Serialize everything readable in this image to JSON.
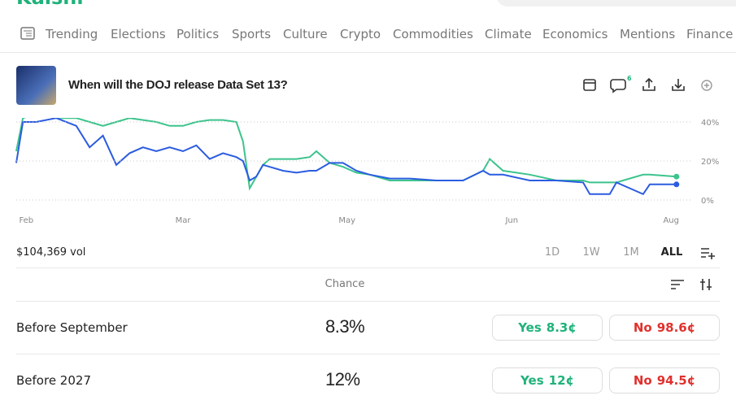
{
  "brand": "Kalshi",
  "nav": [
    "Trending",
    "Elections",
    "Politics",
    "Sports",
    "Culture",
    "Crypto",
    "Commodities",
    "Climate",
    "Economics",
    "Mentions",
    "Finance"
  ],
  "header": {
    "title": "When will the DOJ release Data Set 13?",
    "comment_count": "6"
  },
  "chart_data": {
    "type": "line",
    "x": [
      0,
      1,
      3,
      6,
      9,
      11,
      13,
      15,
      17,
      19,
      21,
      23,
      25,
      27,
      29,
      31,
      33,
      34,
      35,
      36,
      37,
      38,
      40,
      42,
      44,
      45,
      47,
      49,
      51,
      53,
      56,
      59,
      63,
      67,
      70,
      71,
      73,
      77,
      81,
      85,
      86,
      89,
      90,
      94,
      95,
      99
    ],
    "series": [
      {
        "color": "#3cc48c",
        "values": [
          25,
          42,
          44,
          42,
          42,
          40,
          38,
          40,
          42,
          41,
          40,
          38,
          38,
          40,
          41,
          41,
          40,
          30,
          6,
          12,
          18,
          21,
          21,
          21,
          22,
          25,
          19,
          17,
          14,
          13,
          10,
          10,
          10,
          10,
          15,
          21,
          15,
          13,
          10,
          10,
          9,
          9,
          9,
          13,
          13,
          12
        ]
      },
      {
        "color": "#2b5ce0",
        "values": [
          19,
          40,
          40,
          42,
          38,
          27,
          33,
          18,
          24,
          27,
          25,
          27,
          25,
          28,
          21,
          24,
          22,
          20,
          10,
          12,
          18,
          17,
          15,
          14,
          15,
          15,
          19,
          19,
          15,
          13,
          11,
          11,
          10,
          10,
          15,
          13,
          13,
          10,
          10,
          9,
          3,
          3,
          9,
          3,
          8,
          8
        ]
      }
    ],
    "xlim": [
      0,
      100
    ],
    "xticks": [
      {
        "value": 1.5,
        "label": "Feb"
      },
      {
        "value": 25,
        "label": "Mar"
      },
      {
        "value": 49.6,
        "label": "May"
      },
      {
        "value": 74.3,
        "label": "Jun"
      },
      {
        "value": 98.2,
        "label": "Aug"
      }
    ],
    "ylim": [
      -4,
      50
    ],
    "yticks": [
      {
        "value": 0,
        "label": "0%"
      },
      {
        "value": 20,
        "label": "20%"
      },
      {
        "value": 40,
        "label": "40%"
      }
    ],
    "grid": true
  },
  "volume": "$104,369 vol",
  "ranges": [
    "1D",
    "1W",
    "1M",
    "ALL"
  ],
  "table": {
    "header": "Chance",
    "rows": [
      {
        "label": "Before September",
        "chance": "8.3%",
        "yes": "Yes",
        "yes_price": "8.3¢",
        "no": "No",
        "no_price": "98.6¢"
      },
      {
        "label": "Before 2027",
        "chance": "12%",
        "yes": "Yes",
        "yes_price": "12¢",
        "no": "No",
        "no_price": "94.5¢"
      }
    ]
  }
}
